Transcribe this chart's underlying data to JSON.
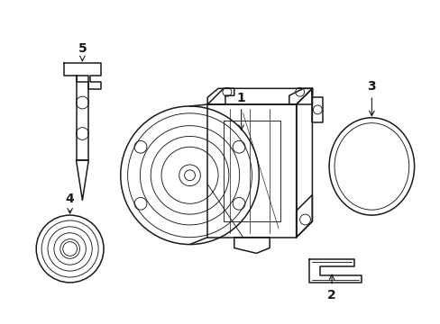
{
  "background_color": "#ffffff",
  "line_color": "#1a1a1a",
  "lw": 1.1,
  "tlw": 0.65,
  "figsize": [
    4.89,
    3.6
  ],
  "dpi": 100
}
